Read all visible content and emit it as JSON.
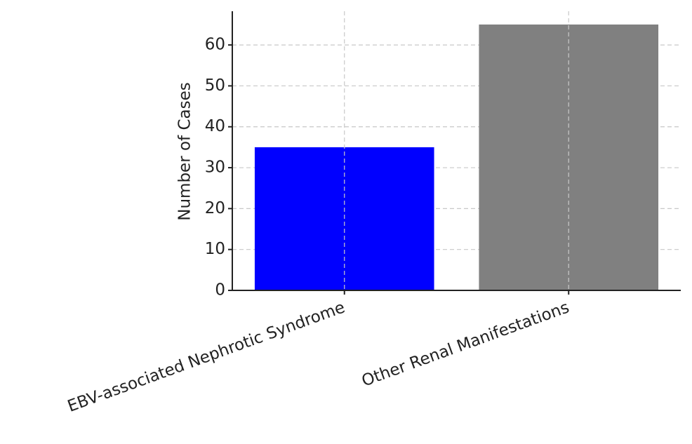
{
  "chart_data": {
    "type": "bar",
    "categories": [
      "EBV-associated Nephrotic Syndrome",
      "Other Renal Manifestations"
    ],
    "values": [
      35,
      65
    ],
    "colors": [
      "#0000ff",
      "#808080"
    ],
    "ylabel": "Number of Cases",
    "ylim": [
      0,
      68.25
    ],
    "yticks": [
      0,
      10,
      20,
      30,
      40,
      50,
      60
    ],
    "grid": true
  }
}
